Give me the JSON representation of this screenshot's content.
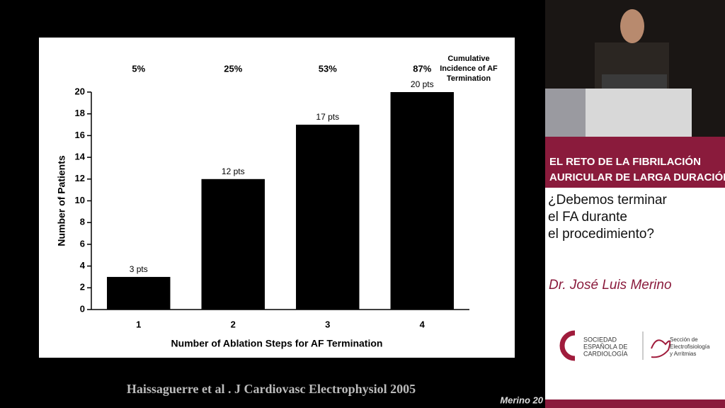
{
  "chart_data": {
    "type": "bar",
    "categories": [
      "1",
      "2",
      "3",
      "4"
    ],
    "values": [
      3,
      12,
      17,
      20
    ],
    "value_labels": [
      "3 pts",
      "12 pts",
      "17 pts",
      "20 pts"
    ],
    "color": "#000000",
    "ylim": [
      0,
      20
    ],
    "yticks": [
      0,
      2,
      4,
      6,
      8,
      10,
      12,
      14,
      16,
      18,
      20
    ],
    "xlabel": "Number of Ablation Steps for AF Termination",
    "ylabel": "Number of Patients",
    "cumulative_labels": [
      "5%",
      "25%",
      "53%",
      "87%"
    ],
    "cumulative_title": [
      "Cumulative",
      "Incidence of AF",
      "Termination"
    ]
  },
  "slide": {
    "citation": "Haissaguerre et al . J Cardiovasc Electrophysiol 2005",
    "footer": "Merino  20"
  },
  "sidebar": {
    "header": [
      "EL RETO DE LA FIBRILACIÓN",
      "AURICULAR DE LARGA DURACIÓN"
    ],
    "question": [
      "¿Debemos terminar",
      "el FA durante",
      "el procedimiento?"
    ],
    "speaker": "Dr. José Luis Merino",
    "logo_left": [
      "SOCIEDAD",
      "ESPAÑOLA DE",
      "CARDIOLOGÍA"
    ],
    "logo_right": [
      "Sección de",
      "Electrofisiología",
      "y Arritmias"
    ]
  }
}
